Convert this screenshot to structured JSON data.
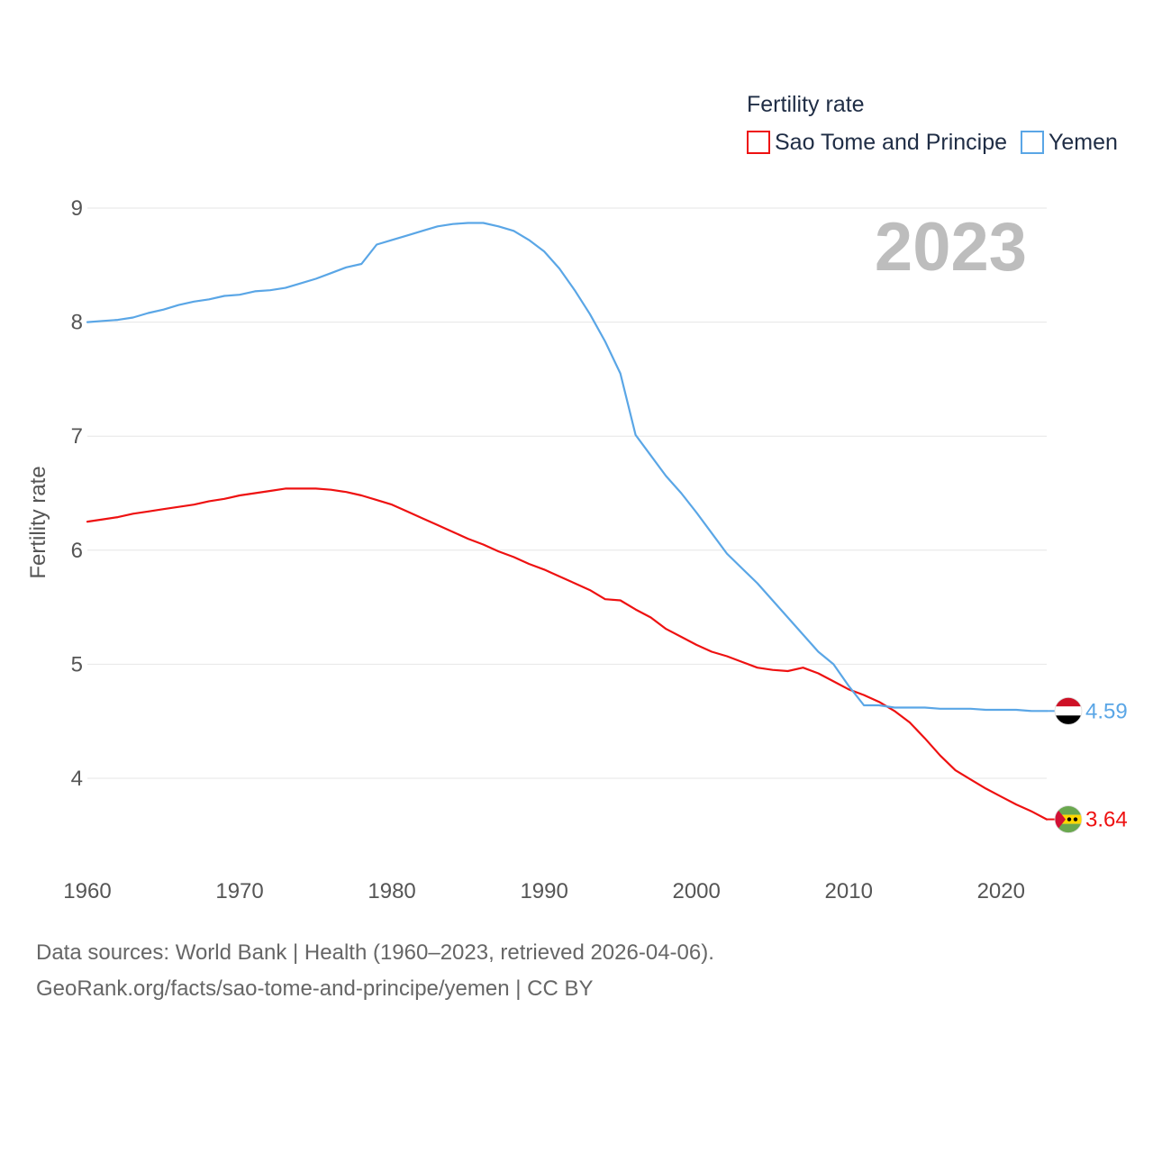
{
  "chart_data": {
    "type": "line",
    "title": "",
    "legend_title": "Fertility rate",
    "legend_position": "top-right",
    "ylabel": "Fertility rate",
    "xlabel": "",
    "year_label": "2023",
    "xlim": [
      1960,
      2023
    ],
    "ylim": [
      3.45,
      9.25
    ],
    "x_ticks": [
      1960,
      1970,
      1980,
      1990,
      2000,
      2010,
      2020
    ],
    "y_ticks": [
      4,
      5,
      6,
      7,
      8,
      9
    ],
    "grid": true,
    "x_start": 1960,
    "series": [
      {
        "name": "Sao Tome and Principe",
        "color": "#ee1111",
        "end_label": "3.64",
        "flag": "sao-tome-and-principe-flag-icon",
        "values": [
          6.25,
          6.27,
          6.29,
          6.32,
          6.34,
          6.36,
          6.38,
          6.4,
          6.43,
          6.45,
          6.48,
          6.5,
          6.52,
          6.54,
          6.54,
          6.54,
          6.53,
          6.51,
          6.48,
          6.44,
          6.4,
          6.34,
          6.28,
          6.22,
          6.16,
          6.1,
          6.05,
          5.99,
          5.94,
          5.88,
          5.83,
          5.77,
          5.71,
          5.65,
          5.57,
          5.56,
          5.48,
          5.41,
          5.31,
          5.24,
          5.17,
          5.11,
          5.07,
          5.02,
          4.97,
          4.95,
          4.94,
          4.97,
          4.92,
          4.85,
          4.78,
          4.73,
          4.67,
          4.59,
          4.49,
          4.35,
          4.2,
          4.07,
          3.99,
          3.91,
          3.84,
          3.77,
          3.71,
          3.64
        ]
      },
      {
        "name": "Yemen",
        "color": "#5aa6e6",
        "end_label": "4.59",
        "flag": "yemen-flag-icon",
        "values": [
          8.0,
          8.01,
          8.02,
          8.04,
          8.08,
          8.11,
          8.15,
          8.18,
          8.2,
          8.23,
          8.24,
          8.27,
          8.28,
          8.3,
          8.34,
          8.38,
          8.43,
          8.48,
          8.51,
          8.68,
          8.72,
          8.76,
          8.8,
          8.84,
          8.86,
          8.87,
          8.87,
          8.84,
          8.8,
          8.72,
          8.62,
          8.47,
          8.28,
          8.07,
          7.83,
          7.55,
          7.01,
          6.83,
          6.65,
          6.5,
          6.33,
          6.15,
          5.97,
          5.84,
          5.71,
          5.56,
          5.41,
          5.26,
          5.11,
          5.0,
          4.81,
          4.64,
          4.64,
          4.62,
          4.62,
          4.62,
          4.61,
          4.61,
          4.61,
          4.6,
          4.6,
          4.6,
          4.59,
          4.59
        ]
      }
    ]
  },
  "footer": {
    "line1": "Data sources: World Bank | Health (1960–2023, retrieved 2026-04-06).",
    "line2": "GeoRank.org/facts/sao-tome-and-principe/yemen | CC BY"
  }
}
